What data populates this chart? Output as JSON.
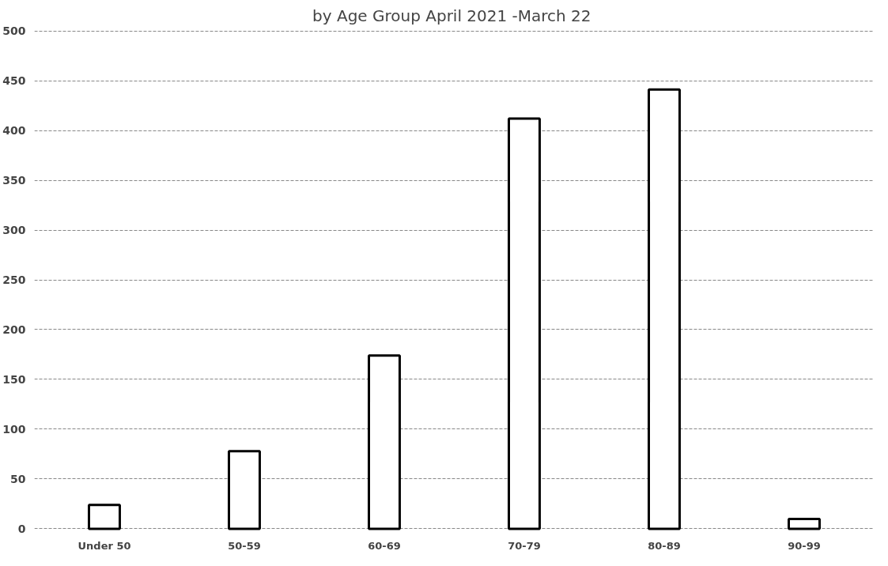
{
  "chart_data": {
    "type": "bar",
    "title": "by Age Group  April 2021 -March 22",
    "categories": [
      "Under 50",
      "50-59",
      "60-69",
      "70-79",
      "80-89",
      "90-99"
    ],
    "values": [
      24,
      78,
      174,
      412,
      441,
      10
    ],
    "color": "#ffffff",
    "ylim": [
      0,
      500
    ],
    "yticks": [
      0,
      50,
      100,
      150,
      200,
      250,
      300,
      350,
      400,
      450,
      500
    ],
    "grid": "y"
  }
}
